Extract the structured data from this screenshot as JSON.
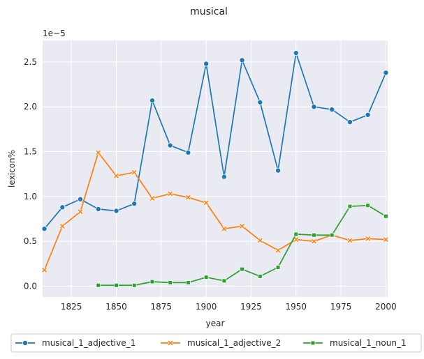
{
  "chart_data": {
    "type": "line",
    "title": "musical",
    "xlabel": "year",
    "ylabel": "lexicon%",
    "y_offset_label": "1e−5",
    "xlim": [
      1809,
      2001
    ],
    "ylim": [
      -0.12,
      2.74
    ],
    "x_ticks": [
      1825,
      1850,
      1875,
      1900,
      1925,
      1950,
      1975,
      2000
    ],
    "y_ticks": [
      0.0,
      0.5,
      1.0,
      1.5,
      2.0,
      2.5
    ],
    "y_tick_labels": [
      "0.0",
      "0.5",
      "1.0",
      "1.5",
      "2.0",
      "2.5"
    ],
    "grid": true,
    "legend_position": "bottom",
    "series": [
      {
        "name": "musical_1_adjective_1",
        "color": "#1f77b4",
        "marker": "circle",
        "x": [
          1810,
          1820,
          1830,
          1840,
          1850,
          1860,
          1870,
          1880,
          1890,
          1900,
          1910,
          1920,
          1930,
          1940,
          1950,
          1960,
          1970,
          1980,
          1990,
          2000
        ],
        "y": [
          0.64,
          0.88,
          0.97,
          0.86,
          0.84,
          0.92,
          2.07,
          1.57,
          1.49,
          2.48,
          1.22,
          2.52,
          2.05,
          1.29,
          2.6,
          2.0,
          1.97,
          1.83,
          1.91,
          2.38
        ]
      },
      {
        "name": "musical_1_adjective_2",
        "color": "#ff7f0e",
        "marker": "x",
        "x": [
          1810,
          1820,
          1830,
          1840,
          1850,
          1860,
          1870,
          1880,
          1890,
          1900,
          1910,
          1920,
          1930,
          1940,
          1950,
          1960,
          1970,
          1980,
          1990,
          2000
        ],
        "y": [
          0.18,
          0.67,
          0.83,
          1.49,
          1.23,
          1.27,
          0.98,
          1.03,
          0.99,
          0.93,
          0.64,
          0.67,
          0.51,
          0.4,
          0.52,
          0.5,
          0.57,
          0.51,
          0.53,
          0.52
        ]
      },
      {
        "name": "musical_1_noun_1",
        "color": "#2ca02c",
        "marker": "square",
        "x": [
          1840,
          1850,
          1860,
          1870,
          1880,
          1890,
          1900,
          1910,
          1920,
          1930,
          1940,
          1950,
          1960,
          1970,
          1980,
          1990,
          2000
        ],
        "y": [
          0.01,
          0.01,
          0.01,
          0.05,
          0.04,
          0.04,
          0.1,
          0.06,
          0.19,
          0.11,
          0.21,
          0.58,
          0.57,
          0.57,
          0.89,
          0.9,
          0.78
        ]
      }
    ]
  }
}
